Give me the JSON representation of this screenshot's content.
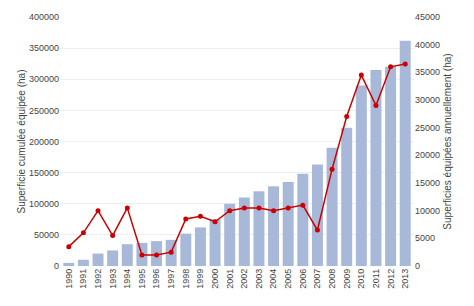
{
  "chart_data": {
    "type": "bar",
    "categories": [
      "1990",
      "1991",
      "1992",
      "1993",
      "1994",
      "1995",
      "1996",
      "1997",
      "1998",
      "1999",
      "2000",
      "2001",
      "2002",
      "2003",
      "2004",
      "2005",
      "2006",
      "2007",
      "2008",
      "2009",
      "2010",
      "2011",
      "2012",
      "2013"
    ],
    "series": [
      {
        "type": "bar",
        "color": "#a8b8d8",
        "values": [
          5000,
          10000,
          20000,
          25000,
          35000,
          37000,
          40000,
          42000,
          52000,
          62000,
          75000,
          100000,
          110000,
          120000,
          128000,
          135000,
          148000,
          163000,
          190000,
          222000,
          290000,
          315000,
          320000,
          362000
        ]
      },
      {
        "type": "line",
        "color": "#cc0000",
        "marker": "circle",
        "axis": "y2",
        "values": [
          3500,
          6000,
          10000,
          5500,
          10500,
          2000,
          2000,
          2500,
          8500,
          9000,
          8000,
          10000,
          10500,
          10500,
          10000,
          10500,
          11000,
          6500,
          17500,
          27000,
          34500,
          29000,
          36000,
          36500
        ]
      }
    ],
    "ylabel": "Superficie cumulée équipée (ha)",
    "y2label": "Superficies équipées annuellement (ha)",
    "ylim": [
      0,
      400000
    ],
    "yticks": [
      0,
      50000,
      100000,
      150000,
      200000,
      250000,
      300000,
      350000,
      400000
    ],
    "y2lim": [
      0,
      45000
    ],
    "y2ticks": [
      0,
      5000,
      10000,
      15000,
      20000,
      25000,
      30000,
      35000,
      40000,
      45000
    ],
    "grid": true
  }
}
